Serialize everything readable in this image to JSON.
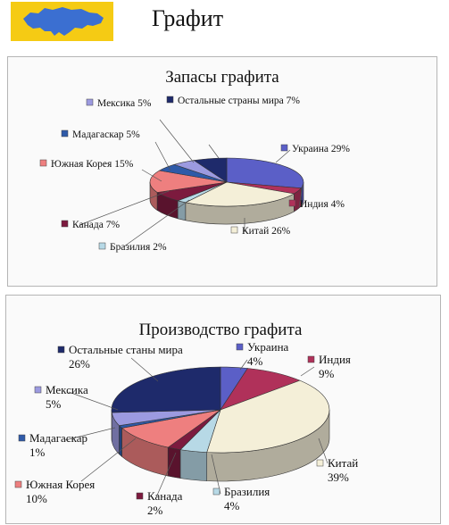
{
  "page": {
    "title": "Графит"
  },
  "colors": {
    "logo_bg": "#f5cb14",
    "map": "#3b6fd1"
  },
  "chart_data": [
    {
      "type": "pie",
      "title": "Запасы графита",
      "categories": [
        "Украина",
        "Индия",
        "Китай",
        "Бразилия",
        "Канада",
        "Южная Корея",
        "Мадагаскар",
        "Мексика",
        "Остальные страны мира"
      ],
      "values": [
        29,
        4,
        26,
        2,
        7,
        15,
        5,
        5,
        7
      ],
      "labels": [
        "Украина 29%",
        "Индия 4%",
        "Китай 26%",
        "Бразилия 2%",
        "Канада 7%",
        "Южная Корея 15%",
        "Мадагаскар 5%",
        "Мексика 5%",
        "Остальные страны мира 7%"
      ],
      "colors": [
        "#5b5fc7",
        "#b0315a",
        "#f4efd8",
        "#b7d9e6",
        "#7c1a3e",
        "#ee7f7f",
        "#2e5aa8",
        "#9c9ae0",
        "#1e2a6b"
      ],
      "legend": "labels-around"
    },
    {
      "type": "pie",
      "title": "Производство графита",
      "categories": [
        "Украина",
        "Индия",
        "Китай",
        "Бразилия",
        "Канада",
        "Южная Корея",
        "Мадагаскар",
        "Мексика",
        "Остальные станы мира"
      ],
      "values": [
        4,
        9,
        39,
        4,
        2,
        10,
        1,
        5,
        26
      ],
      "labels": [
        [
          "Украина",
          "4%"
        ],
        [
          "Индия",
          "9%"
        ],
        [
          "Китай",
          "39%"
        ],
        [
          "Бразилия",
          "4%"
        ],
        [
          "Канада",
          "2%"
        ],
        [
          "Южная Корея",
          "10%"
        ],
        [
          "Мадагаскар",
          "1%"
        ],
        [
          "Мексика",
          "5%"
        ],
        [
          "Остальные станы мира",
          "26%"
        ]
      ],
      "colors": [
        "#5b5fc7",
        "#b0315a",
        "#f4efd8",
        "#b7d9e6",
        "#7c1a3e",
        "#ee7f7f",
        "#2e5aa8",
        "#9c9ae0",
        "#1e2a6b"
      ],
      "legend": "labels-around"
    }
  ]
}
